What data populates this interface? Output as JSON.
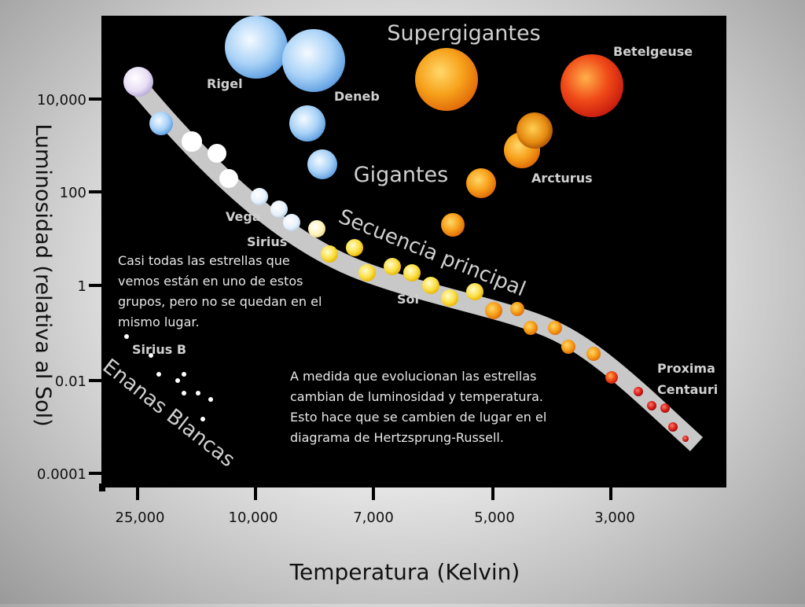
{
  "axes": {
    "y_label": "Luminosidad (relativa al Sol)",
    "x_label": "Temperatura (Kelvin)",
    "y_ticks": [
      "10,000",
      "100",
      "1",
      "0.01",
      "0.0001"
    ],
    "x_ticks": [
      "25,000",
      "10,000",
      "7,000",
      "5,000",
      "3,000"
    ]
  },
  "groups": {
    "supergiants": "Supergigantes",
    "giants": "Gigantes",
    "main_sequence": "Secuencia principal",
    "white_dwarfs": "Enanas Blancas"
  },
  "stars": {
    "rigel": "Rigel",
    "deneb": "Deneb",
    "betelgeuse": "Betelgeuse",
    "arcturus": "Arcturus",
    "vega": "Vega",
    "sirius": "Sirius",
    "sol": "Sol",
    "sirius_b": "Sirius B",
    "proxima_1": "Proxima",
    "proxima_2": "Centauri"
  },
  "notes": {
    "note1": [
      "Casi todas las estrellas que",
      "vemos están en uno de estos",
      "grupos, pero no se quedan en el",
      "mismo lugar."
    ],
    "note2": [
      "A medida que evolucionan las estrellas",
      "cambian de luminosidad y temperatura.",
      "Esto hace que se cambien de lugar en el",
      "diagrama de Hertzsprung-Russell."
    ]
  },
  "colors": {
    "panel": "#000000",
    "band": "#c8c8c8",
    "blue_star": "#9cc8f2",
    "white_star": "#ffffff",
    "yellow_star": "#f8d21c",
    "orange_star": "#f08a18",
    "red_star": "#d8201c"
  }
}
